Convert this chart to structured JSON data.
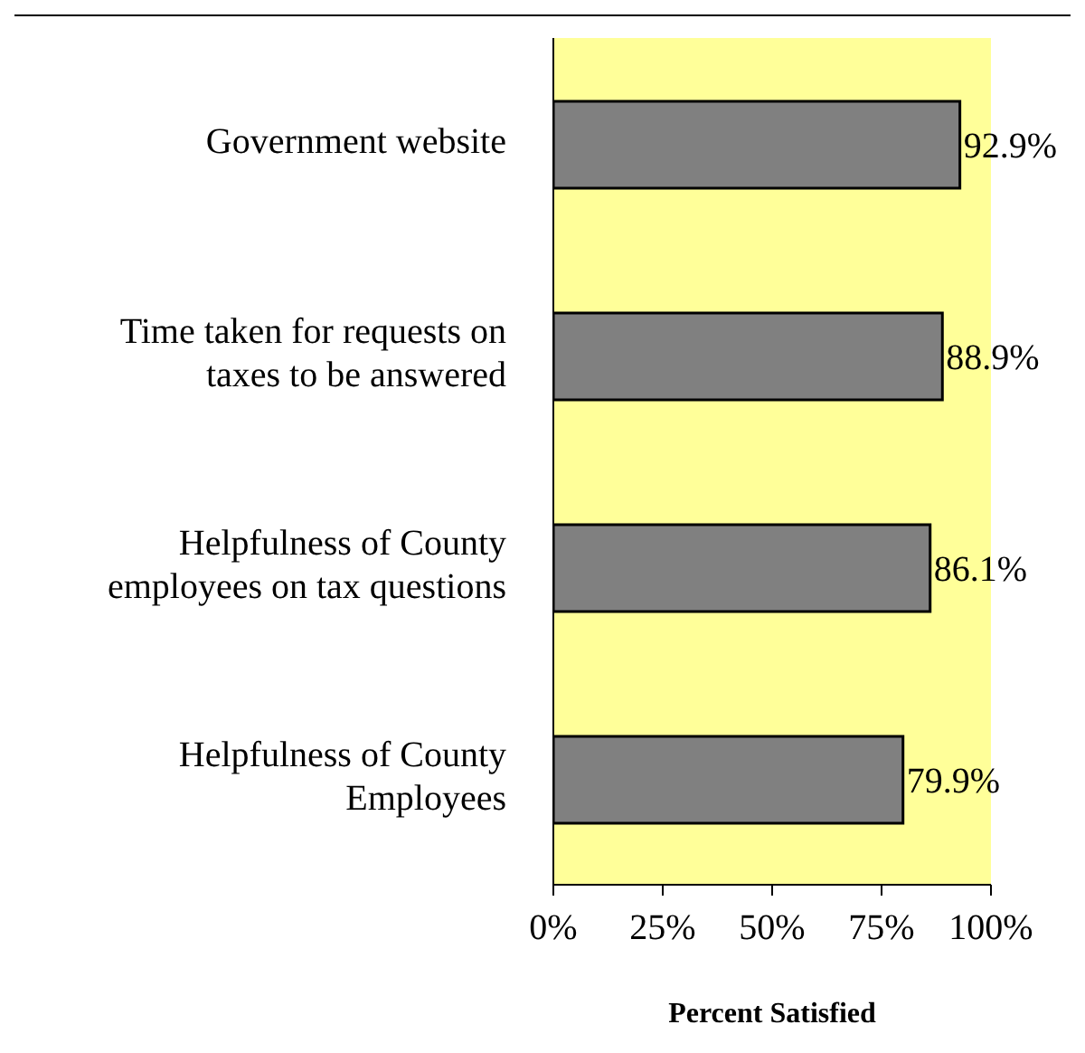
{
  "chart_data": {
    "type": "bar",
    "orientation": "horizontal",
    "xlabel": "Percent Satisfied",
    "categories": [
      "Government website",
      "Time taken for requests on taxes to be answered",
      "Helpfulness of County employees on tax questions",
      "Helpfulness of County Employees"
    ],
    "values": [
      92.9,
      88.9,
      86.1,
      79.9
    ],
    "value_labels": [
      "92.9%",
      "88.9%",
      "86.1%",
      "79.9%"
    ],
    "color": "#808080",
    "xlim": [
      0,
      100
    ],
    "xticks": [
      {
        "value": 0,
        "label": "0%"
      },
      {
        "value": 25,
        "label": "25%"
      },
      {
        "value": 50,
        "label": "50%"
      },
      {
        "value": 75,
        "label": "75%"
      },
      {
        "value": 100,
        "label": "100%"
      }
    ],
    "grid": false
  }
}
